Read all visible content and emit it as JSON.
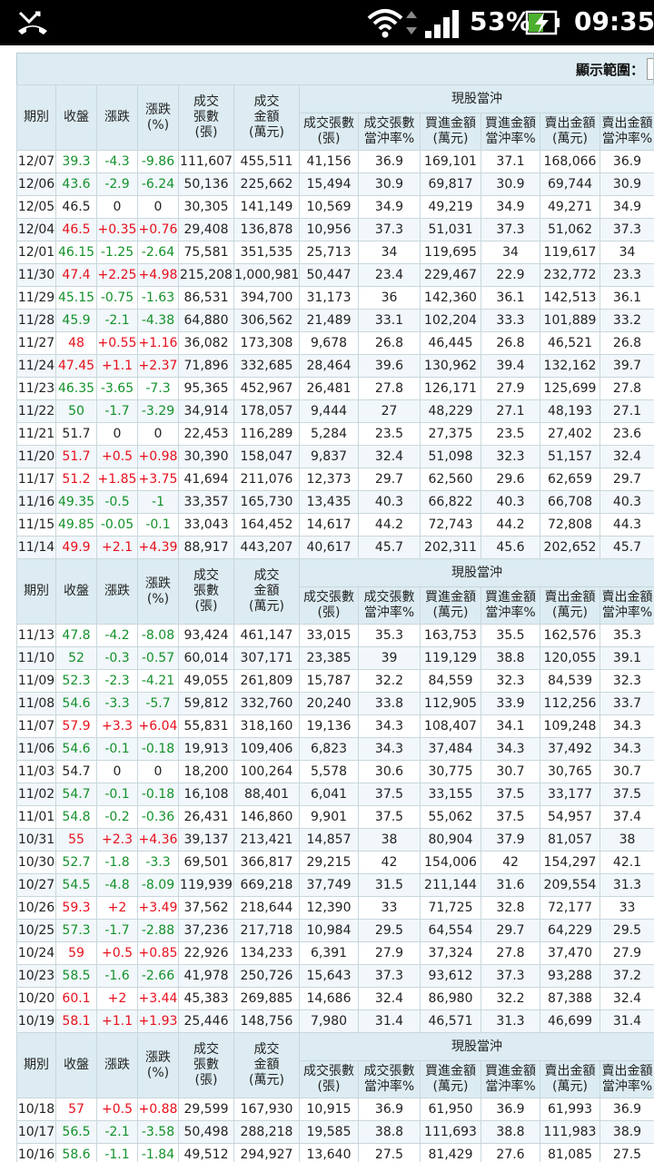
{
  "status_bar": {
    "battery": "53%",
    "time": "09:35",
    "icons": [
      "missed-call-icon",
      "wifi-icon",
      "data-arrows-icon",
      "signal-icon",
      "battery-charging-icon"
    ]
  },
  "range_label": "顯示範圍：",
  "headers": {
    "period": "期別",
    "close": "收盤",
    "change": "漲跌",
    "change_pct": "漲跌\n(%)",
    "volume": "成交\n張數\n(張)",
    "amount": "成交\n金額\n(萬元)",
    "group": "現股當沖",
    "sub": [
      "成交張數\n(張)",
      "成交張數\n當沖率%",
      "買進金額\n(萬元)",
      "買進金額\n當沖率%",
      "賣出金額\n(萬元)",
      "賣出金額\n當沖率%"
    ]
  },
  "colors": {
    "up": "#e8101c",
    "down": "#13912b",
    "header_bg": "#dcecf2",
    "row_alt": "#f1f7fa"
  },
  "sections": [
    [
      [
        "12/07",
        "39.3",
        "-4.3",
        "-9.86",
        "111,607",
        "455,511",
        "41,156",
        "36.9",
        "169,101",
        "37.1",
        "168,066",
        "36.9"
      ],
      [
        "12/06",
        "43.6",
        "-2.9",
        "-6.24",
        "50,136",
        "225,662",
        "15,494",
        "30.9",
        "69,817",
        "30.9",
        "69,744",
        "30.9"
      ],
      [
        "12/05",
        "46.5",
        "0",
        "0",
        "30,305",
        "141,149",
        "10,569",
        "34.9",
        "49,219",
        "34.9",
        "49,271",
        "34.9"
      ],
      [
        "12/04",
        "46.5",
        "+0.35",
        "+0.76",
        "29,408",
        "136,878",
        "10,956",
        "37.3",
        "51,031",
        "37.3",
        "51,062",
        "37.3"
      ],
      [
        "12/01",
        "46.15",
        "-1.25",
        "-2.64",
        "75,581",
        "351,535",
        "25,713",
        "34",
        "119,695",
        "34",
        "119,617",
        "34"
      ],
      [
        "11/30",
        "47.4",
        "+2.25",
        "+4.98",
        "215,208",
        "1,000,981",
        "50,447",
        "23.4",
        "229,467",
        "22.9",
        "232,772",
        "23.3"
      ],
      [
        "11/29",
        "45.15",
        "-0.75",
        "-1.63",
        "86,531",
        "394,700",
        "31,173",
        "36",
        "142,360",
        "36.1",
        "142,513",
        "36.1"
      ],
      [
        "11/28",
        "45.9",
        "-2.1",
        "-4.38",
        "64,880",
        "306,562",
        "21,489",
        "33.1",
        "102,204",
        "33.3",
        "101,889",
        "33.2"
      ],
      [
        "11/27",
        "48",
        "+0.55",
        "+1.16",
        "36,082",
        "173,308",
        "9,678",
        "26.8",
        "46,445",
        "26.8",
        "46,521",
        "26.8"
      ],
      [
        "11/24",
        "47.45",
        "+1.1",
        "+2.37",
        "71,896",
        "332,685",
        "28,464",
        "39.6",
        "130,962",
        "39.4",
        "132,162",
        "39.7"
      ],
      [
        "11/23",
        "46.35",
        "-3.65",
        "-7.3",
        "95,365",
        "452,967",
        "26,481",
        "27.8",
        "126,171",
        "27.9",
        "125,699",
        "27.8"
      ],
      [
        "11/22",
        "50",
        "-1.7",
        "-3.29",
        "34,914",
        "178,057",
        "9,444",
        "27",
        "48,229",
        "27.1",
        "48,193",
        "27.1"
      ],
      [
        "11/21",
        "51.7",
        "0",
        "0",
        "22,453",
        "116,289",
        "5,284",
        "23.5",
        "27,375",
        "23.5",
        "27,402",
        "23.6"
      ],
      [
        "11/20",
        "51.7",
        "+0.5",
        "+0.98",
        "30,390",
        "158,047",
        "9,837",
        "32.4",
        "51,098",
        "32.3",
        "51,157",
        "32.4"
      ],
      [
        "11/17",
        "51.2",
        "+1.85",
        "+3.75",
        "41,694",
        "211,076",
        "12,373",
        "29.7",
        "62,560",
        "29.6",
        "62,659",
        "29.7"
      ],
      [
        "11/16",
        "49.35",
        "-0.5",
        "-1",
        "33,357",
        "165,730",
        "13,435",
        "40.3",
        "66,822",
        "40.3",
        "66,708",
        "40.3"
      ],
      [
        "11/15",
        "49.85",
        "-0.05",
        "-0.1",
        "33,043",
        "164,452",
        "14,617",
        "44.2",
        "72,743",
        "44.2",
        "72,808",
        "44.3"
      ],
      [
        "11/14",
        "49.9",
        "+2.1",
        "+4.39",
        "88,917",
        "443,207",
        "40,617",
        "45.7",
        "202,311",
        "45.6",
        "202,652",
        "45.7"
      ]
    ],
    [
      [
        "11/13",
        "47.8",
        "-4.2",
        "-8.08",
        "93,424",
        "461,147",
        "33,015",
        "35.3",
        "163,753",
        "35.5",
        "162,576",
        "35.3"
      ],
      [
        "11/10",
        "52",
        "-0.3",
        "-0.57",
        "60,014",
        "307,171",
        "23,385",
        "39",
        "119,129",
        "38.8",
        "120,055",
        "39.1"
      ],
      [
        "11/09",
        "52.3",
        "-2.3",
        "-4.21",
        "49,055",
        "261,809",
        "15,787",
        "32.2",
        "84,559",
        "32.3",
        "84,539",
        "32.3"
      ],
      [
        "11/08",
        "54.6",
        "-3.3",
        "-5.7",
        "59,812",
        "332,760",
        "20,240",
        "33.8",
        "112,905",
        "33.9",
        "112,256",
        "33.7"
      ],
      [
        "11/07",
        "57.9",
        "+3.3",
        "+6.04",
        "55,831",
        "318,160",
        "19,136",
        "34.3",
        "108,407",
        "34.1",
        "109,248",
        "34.3"
      ],
      [
        "11/06",
        "54.6",
        "-0.1",
        "-0.18",
        "19,913",
        "109,406",
        "6,823",
        "34.3",
        "37,484",
        "34.3",
        "37,492",
        "34.3"
      ],
      [
        "11/03",
        "54.7",
        "0",
        "0",
        "18,200",
        "100,264",
        "5,578",
        "30.6",
        "30,775",
        "30.7",
        "30,765",
        "30.7"
      ],
      [
        "11/02",
        "54.7",
        "-0.1",
        "-0.18",
        "16,108",
        "88,401",
        "6,041",
        "37.5",
        "33,155",
        "37.5",
        "33,177",
        "37.5"
      ],
      [
        "11/01",
        "54.8",
        "-0.2",
        "-0.36",
        "26,431",
        "146,860",
        "9,901",
        "37.5",
        "55,062",
        "37.5",
        "54,957",
        "37.4"
      ],
      [
        "10/31",
        "55",
        "+2.3",
        "+4.36",
        "39,137",
        "213,421",
        "14,857",
        "38",
        "80,904",
        "37.9",
        "81,057",
        "38"
      ],
      [
        "10/30",
        "52.7",
        "-1.8",
        "-3.3",
        "69,501",
        "366,817",
        "29,215",
        "42",
        "154,006",
        "42",
        "154,297",
        "42.1"
      ],
      [
        "10/27",
        "54.5",
        "-4.8",
        "-8.09",
        "119,939",
        "669,218",
        "37,749",
        "31.5",
        "211,144",
        "31.6",
        "209,554",
        "31.3"
      ],
      [
        "10/26",
        "59.3",
        "+2",
        "+3.49",
        "37,562",
        "218,644",
        "12,390",
        "33",
        "71,725",
        "32.8",
        "72,177",
        "33"
      ],
      [
        "10/25",
        "57.3",
        "-1.7",
        "-2.88",
        "37,236",
        "217,718",
        "10,984",
        "29.5",
        "64,554",
        "29.7",
        "64,229",
        "29.5"
      ],
      [
        "10/24",
        "59",
        "+0.5",
        "+0.85",
        "22,926",
        "134,233",
        "6,391",
        "27.9",
        "37,324",
        "27.8",
        "37,470",
        "27.9"
      ],
      [
        "10/23",
        "58.5",
        "-1.6",
        "-2.66",
        "41,978",
        "250,726",
        "15,643",
        "37.3",
        "93,612",
        "37.3",
        "93,288",
        "37.2"
      ],
      [
        "10/20",
        "60.1",
        "+2",
        "+3.44",
        "45,383",
        "269,885",
        "14,686",
        "32.4",
        "86,980",
        "32.2",
        "87,388",
        "32.4"
      ],
      [
        "10/19",
        "58.1",
        "+1.1",
        "+1.93",
        "25,446",
        "148,756",
        "7,980",
        "31.4",
        "46,571",
        "31.3",
        "46,699",
        "31.4"
      ]
    ],
    [
      [
        "10/18",
        "57",
        "+0.5",
        "+0.88",
        "29,599",
        "167,930",
        "10,915",
        "36.9",
        "61,950",
        "36.9",
        "61,993",
        "36.9"
      ],
      [
        "10/17",
        "56.5",
        "-2.1",
        "-3.58",
        "50,498",
        "288,218",
        "19,585",
        "38.8",
        "111,693",
        "38.8",
        "111,983",
        "38.9"
      ],
      [
        "10/16",
        "58.6",
        "-1.1",
        "-1.84",
        "49,512",
        "294,927",
        "13,640",
        "27.5",
        "81,429",
        "27.6",
        "81,085",
        "27.5"
      ]
    ]
  ]
}
